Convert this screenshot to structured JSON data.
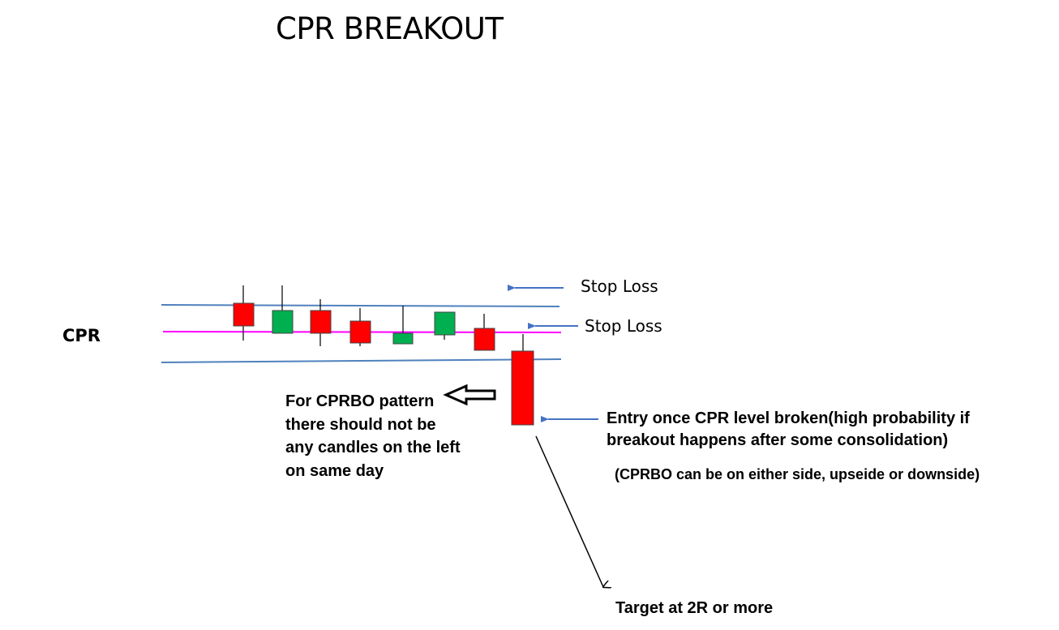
{
  "title": "CPR BREAKOUT",
  "cpr_label": "CPR",
  "stop_loss_upper": "Stop Loss",
  "stop_loss_lower": "Stop Loss",
  "left_note": [
    "For CPRBO pattern",
    "there should not be",
    "any candles on the left",
    "on same day"
  ],
  "entry_note": [
    "Entry once CPR level broken(high probability if",
    "breakout happens after some consolidation)"
  ],
  "side_note": "(CPRBO can be on either side, upseide or downside)",
  "target_note": "Target at 2R or more",
  "colors": {
    "bearish": "#ff0000",
    "bullish": "#00b050",
    "cpr_pivot_line": "#ff00ff",
    "cpr_band_lines": "#4f81bd",
    "arrows": "#4472c4"
  },
  "candles": [
    {
      "direction": "bearish"
    },
    {
      "direction": "bullish"
    },
    {
      "direction": "bearish"
    },
    {
      "direction": "bearish"
    },
    {
      "direction": "bullish"
    },
    {
      "direction": "bullish"
    },
    {
      "direction": "bearish"
    },
    {
      "direction": "bearish",
      "role": "breakout"
    }
  ]
}
